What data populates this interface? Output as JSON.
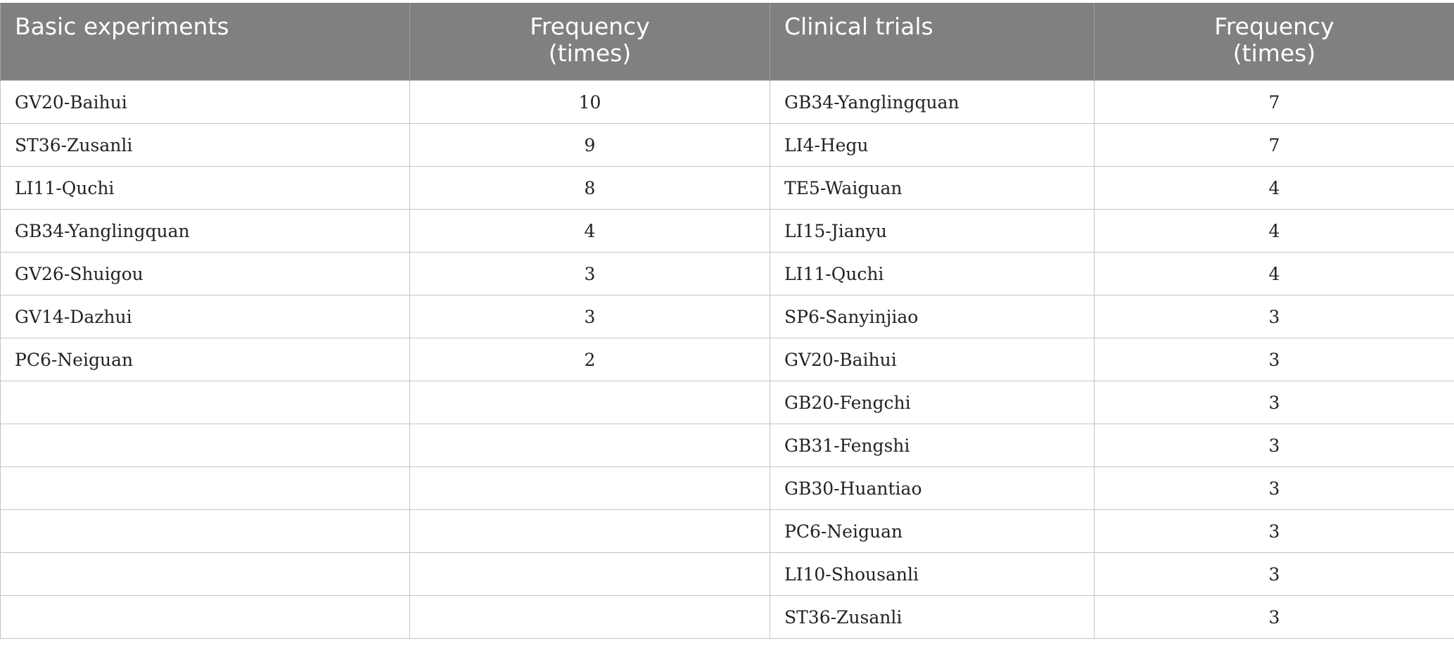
{
  "table": {
    "headers": {
      "basic_experiments": "Basic experiments",
      "frequency_basic_line1": "Frequency",
      "frequency_basic_line2": "(times)",
      "clinical_trials": "Clinical trials",
      "frequency_clinical_line1": "Frequency",
      "frequency_clinical_line2": "(times)"
    },
    "rows": [
      {
        "basic": "GV20-Baihui",
        "basic_freq": "10",
        "clinical": "GB34-Yanglingquan",
        "clinical_freq": "7"
      },
      {
        "basic": "ST36-Zusanli",
        "basic_freq": "9",
        "clinical": "LI4-Hegu",
        "clinical_freq": "7"
      },
      {
        "basic": "LI11-Quchi",
        "basic_freq": "8",
        "clinical": "TE5-Waiguan",
        "clinical_freq": "4"
      },
      {
        "basic": "GB34-Yanglingquan",
        "basic_freq": "4",
        "clinical": "LI15-Jianyu",
        "clinical_freq": "4"
      },
      {
        "basic": "GV26-Shuigou",
        "basic_freq": "3",
        "clinical": "LI11-Quchi",
        "clinical_freq": "4"
      },
      {
        "basic": "GV14-Dazhui",
        "basic_freq": "3",
        "clinical": "SP6-Sanyinjiao",
        "clinical_freq": "3"
      },
      {
        "basic": "PC6-Neiguan",
        "basic_freq": "2",
        "clinical": "GV20-Baihui",
        "clinical_freq": "3"
      },
      {
        "basic": "",
        "basic_freq": "",
        "clinical": "GB20-Fengchi",
        "clinical_freq": "3"
      },
      {
        "basic": "",
        "basic_freq": "",
        "clinical": "GB31-Fengshi",
        "clinical_freq": "3"
      },
      {
        "basic": "",
        "basic_freq": "",
        "clinical": "GB30-Huantiao",
        "clinical_freq": "3"
      },
      {
        "basic": "",
        "basic_freq": "",
        "clinical": "PC6-Neiguan",
        "clinical_freq": "3"
      },
      {
        "basic": "",
        "basic_freq": "",
        "clinical": "LI10-Shousanli",
        "clinical_freq": "3"
      },
      {
        "basic": "",
        "basic_freq": "",
        "clinical": "ST36-Zusanli",
        "clinical_freq": "3"
      }
    ]
  },
  "colors": {
    "header_background": "#808080",
    "header_text": "#ffffff",
    "grid_line": "#c4c4c4"
  }
}
